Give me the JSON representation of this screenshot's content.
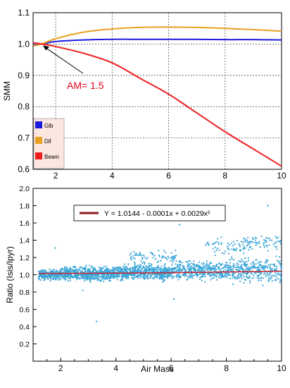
{
  "chart_data": [
    {
      "type": "line",
      "xlim": [
        1.2,
        10
      ],
      "ylim": [
        0.6,
        1.1
      ],
      "xticks": [
        2,
        4,
        6,
        8,
        10
      ],
      "yticks": [
        0.6,
        0.7,
        0.8,
        0.9,
        1.0,
        1.1
      ],
      "xtick_labels": [
        "2",
        "4",
        "6",
        "8",
        "10"
      ],
      "ytick_labels": [
        "0.6",
        "0.7",
        "0.8",
        "0.9",
        "1.0",
        "1.1"
      ],
      "xlabel": "",
      "ylabel": "SMM",
      "grid": true,
      "grid_style": "dotted",
      "legend_position": "bottom-left",
      "x": [
        1.2,
        1.5,
        2,
        3,
        4,
        5,
        6,
        7,
        8,
        9,
        10
      ],
      "series": [
        {
          "name": "Glb",
          "color": "#1a1adf",
          "values": [
            0.996,
            1.0,
            1.008,
            1.013,
            1.015,
            1.015,
            1.015,
            1.015,
            1.014,
            1.014,
            1.013
          ]
        },
        {
          "name": "Dif",
          "color": "#e8a020",
          "values": [
            0.994,
            1.0,
            1.017,
            1.038,
            1.048,
            1.053,
            1.054,
            1.053,
            1.05,
            1.046,
            1.041
          ]
        },
        {
          "name": "Beam",
          "color": "#ef1d1d",
          "values": [
            1.004,
            1.0,
            0.992,
            0.97,
            0.94,
            0.89,
            0.84,
            0.78,
            0.72,
            0.665,
            0.61
          ]
        }
      ],
      "annotation": {
        "text": "AM= 1.5",
        "x": 1.5,
        "y": 1.0,
        "color": "#e8001a"
      }
    },
    {
      "type": "scatter",
      "xlim": [
        1,
        10
      ],
      "ylim": [
        0,
        2.0
      ],
      "xticks": [
        2,
        4,
        6,
        8,
        10
      ],
      "yticks": [
        0,
        0.2,
        0.4,
        0.6,
        0.8,
        1.0,
        1.2,
        1.4,
        1.6,
        1.8,
        2.0
      ],
      "xtick_labels": [
        "2",
        "4",
        "6",
        "8",
        "10"
      ],
      "ytick_labels": [
        "",
        "0.2",
        "0.4",
        "0.6",
        "0.8",
        "1.0",
        "1.2",
        "1.4",
        "1.6",
        "1.8",
        "2.0"
      ],
      "xlabel": "Air Mass",
      "ylabel": "Ratio (Isis/Ipyr)",
      "grid": false,
      "point_color": "#3aa6d8",
      "point_density": [
        {
          "x_range": [
            1.2,
            2.0
          ],
          "y_band": [
            0.92,
            1.08
          ],
          "count": 260
        },
        {
          "x_range": [
            2.0,
            4.0
          ],
          "y_band": [
            0.9,
            1.12
          ],
          "count": 620
        },
        {
          "x_range": [
            4.0,
            6.0
          ],
          "y_band": [
            0.9,
            1.16
          ],
          "count": 560
        },
        {
          "x_range": [
            4.5,
            6.2
          ],
          "y_band": [
            1.12,
            1.3
          ],
          "count": 70
        },
        {
          "x_range": [
            6.0,
            8.0
          ],
          "y_band": [
            0.9,
            1.2
          ],
          "count": 380
        },
        {
          "x_range": [
            7.2,
            9.0
          ],
          "y_band": [
            1.2,
            1.45
          ],
          "count": 70
        },
        {
          "x_range": [
            8.0,
            10.0
          ],
          "y_band": [
            0.85,
            1.25
          ],
          "count": 340
        },
        {
          "x_range": [
            8.6,
            10.0
          ],
          "y_band": [
            1.25,
            1.5
          ],
          "count": 60
        }
      ],
      "outliers": [
        {
          "x": 1.8,
          "y": 1.31
        },
        {
          "x": 9.5,
          "y": 1.8
        },
        {
          "x": 6.3,
          "y": 1.58
        },
        {
          "x": 3.3,
          "y": 0.46
        },
        {
          "x": 6.1,
          "y": 0.72
        },
        {
          "x": 2.8,
          "y": 0.82
        }
      ],
      "fit": {
        "label": "Y = 1.0144 - 0.0001x + 0.0029x²",
        "color": "#8b1a1a",
        "a": 1.0144,
        "b": -0.0001,
        "c": 0.0029,
        "legend_position": "top-center"
      }
    }
  ]
}
